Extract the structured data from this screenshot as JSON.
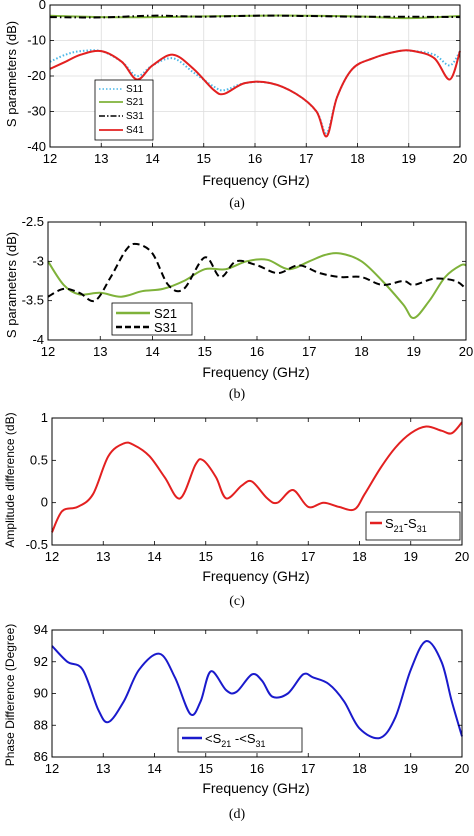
{
  "chart_data": [
    {
      "panel": "(a)",
      "type": "line",
      "xlabel": "Frequency (GHz)",
      "ylabel": "S parameters (dB)",
      "xlim": [
        12,
        20
      ],
      "ylim": [
        -40,
        0
      ],
      "xticks": [
        12,
        13,
        14,
        15,
        16,
        17,
        18,
        19,
        20
      ],
      "yticks": [
        -40,
        -30,
        -20,
        -10,
        0
      ],
      "grid": true,
      "legend_position": "bottom-left",
      "series": [
        {
          "name": "S11",
          "color": "#4bb8e8",
          "style": "dotted",
          "x": [
            12,
            12.3,
            12.6,
            13.0,
            13.4,
            13.7,
            14.0,
            14.4,
            14.8,
            15.2,
            15.4,
            15.8,
            16.3,
            16.8,
            17.2,
            17.4,
            17.6,
            17.9,
            18.3,
            18.8,
            19.1,
            19.5,
            19.8,
            20
          ],
          "y": [
            -16,
            -14,
            -13,
            -13,
            -16,
            -20,
            -17,
            -15,
            -19,
            -23,
            -24,
            -22,
            -22,
            -25,
            -30,
            -36,
            -26,
            -18,
            -15,
            -13,
            -13,
            -14,
            -17,
            -13
          ]
        },
        {
          "name": "S21",
          "color": "#7fb23a",
          "style": "solid",
          "x": [
            12,
            13,
            14,
            15,
            16,
            17,
            18,
            19,
            20
          ],
          "y": [
            -3.0,
            -3.4,
            -3.4,
            -3.2,
            -3.0,
            -3.0,
            -3.2,
            -3.7,
            -3.1
          ]
        },
        {
          "name": "S31",
          "color": "#000000",
          "style": "dashdot",
          "x": [
            12,
            13,
            14,
            15,
            16,
            17,
            18,
            19,
            20
          ],
          "y": [
            -3.4,
            -3.5,
            -3.0,
            -3.3,
            -3.0,
            -3.1,
            -3.3,
            -3.3,
            -3.4
          ]
        },
        {
          "name": "S41",
          "color": "#e32020",
          "style": "solid",
          "x": [
            12,
            12.3,
            12.6,
            13.0,
            13.4,
            13.7,
            14.0,
            14.4,
            14.8,
            15.2,
            15.4,
            15.8,
            16.3,
            16.8,
            17.2,
            17.4,
            17.6,
            17.9,
            18.3,
            18.8,
            19.1,
            19.5,
            19.8,
            20
          ],
          "y": [
            -18,
            -16,
            -14,
            -13,
            -16,
            -21,
            -17,
            -14,
            -18,
            -24,
            -25,
            -22,
            -22,
            -25,
            -30,
            -37,
            -26,
            -18,
            -15,
            -13,
            -13,
            -15,
            -21,
            -13
          ]
        }
      ]
    },
    {
      "panel": "(b)",
      "type": "line",
      "xlabel": "Frequency (GHz)",
      "ylabel": "S parameters (dB)",
      "xlim": [
        12,
        20
      ],
      "ylim": [
        -4,
        -2.5
      ],
      "xticks": [
        12,
        13,
        14,
        15,
        16,
        17,
        18,
        19,
        20
      ],
      "yticks": [
        -4,
        -3.5,
        -3,
        -2.5
      ],
      "grid": false,
      "legend_position": "bottom-left",
      "series": [
        {
          "name": "S21",
          "color": "#7fb23a",
          "style": "solid",
          "x": [
            12,
            12.3,
            12.6,
            13.0,
            13.4,
            13.8,
            14.2,
            14.6,
            15.0,
            15.4,
            15.8,
            16.2,
            16.6,
            17.0,
            17.3,
            17.6,
            18.0,
            18.4,
            18.8,
            19.0,
            19.3,
            19.6,
            19.9,
            20
          ],
          "y": [
            -3.0,
            -3.3,
            -3.42,
            -3.4,
            -3.45,
            -3.38,
            -3.35,
            -3.25,
            -3.1,
            -3.1,
            -3.0,
            -2.98,
            -3.1,
            -3.0,
            -2.92,
            -2.9,
            -3.0,
            -3.25,
            -3.55,
            -3.72,
            -3.5,
            -3.2,
            -3.05,
            -3.05
          ]
        },
        {
          "name": "S31",
          "color": "#000000",
          "style": "dashed",
          "x": [
            12,
            12.3,
            12.6,
            12.9,
            13.2,
            13.5,
            13.7,
            14.0,
            14.3,
            14.6,
            15.0,
            15.3,
            15.6,
            16.0,
            16.4,
            16.8,
            17.2,
            17.6,
            18.0,
            18.4,
            18.8,
            19.0,
            19.4,
            19.8,
            20
          ],
          "y": [
            -3.45,
            -3.35,
            -3.4,
            -3.5,
            -3.2,
            -2.85,
            -2.78,
            -2.9,
            -3.3,
            -3.35,
            -2.95,
            -3.2,
            -3.0,
            -3.05,
            -3.15,
            -3.05,
            -3.15,
            -3.2,
            -3.2,
            -3.3,
            -3.25,
            -3.3,
            -3.22,
            -3.25,
            -3.35
          ]
        }
      ]
    },
    {
      "panel": "(c)",
      "type": "line",
      "xlabel": "Frequency (GHz)",
      "ylabel": "Amplitude difference (dB)",
      "xlim": [
        12,
        20
      ],
      "ylim": [
        -0.5,
        1
      ],
      "xticks": [
        12,
        13,
        14,
        15,
        16,
        17,
        18,
        19,
        20
      ],
      "yticks": [
        -0.5,
        0,
        0.5,
        1
      ],
      "grid": false,
      "legend_position": "bottom-right",
      "series": [
        {
          "name": "S21-S31",
          "color": "#e32020",
          "style": "solid",
          "x": [
            12,
            12.2,
            12.5,
            12.8,
            13.1,
            13.4,
            13.6,
            13.9,
            14.2,
            14.5,
            14.8,
            14.95,
            15.2,
            15.4,
            15.7,
            15.9,
            16.2,
            16.4,
            16.7,
            17.0,
            17.3,
            17.6,
            17.9,
            18.1,
            18.4,
            18.7,
            19.0,
            19.3,
            19.6,
            19.8,
            20
          ],
          "y": [
            -0.35,
            -0.1,
            -0.05,
            0.1,
            0.55,
            0.7,
            0.68,
            0.55,
            0.3,
            0.05,
            0.45,
            0.5,
            0.3,
            0.05,
            0.2,
            0.25,
            0.05,
            0.0,
            0.15,
            -0.05,
            0.0,
            -0.05,
            -0.08,
            0.1,
            0.4,
            0.65,
            0.82,
            0.9,
            0.85,
            0.82,
            0.95
          ]
        }
      ]
    },
    {
      "panel": "(d)",
      "type": "line",
      "xlabel": "Frequency (GHz)",
      "ylabel": "Phase Difference (Degree)",
      "xlim": [
        12,
        20
      ],
      "ylim": [
        86,
        94
      ],
      "xticks": [
        12,
        13,
        14,
        15,
        16,
        17,
        18,
        19,
        20
      ],
      "yticks": [
        86,
        88,
        90,
        92,
        94
      ],
      "grid": false,
      "legend_position": "bottom-left",
      "series": [
        {
          "name": "<S21 -<S31",
          "color": "#1a1acc",
          "style": "solid",
          "x": [
            12,
            12.3,
            12.6,
            12.9,
            13.1,
            13.4,
            13.7,
            14.1,
            14.4,
            14.7,
            14.9,
            15.1,
            15.4,
            15.6,
            15.9,
            16.1,
            16.3,
            16.6,
            16.9,
            17.1,
            17.4,
            17.7,
            18.0,
            18.4,
            18.7,
            19.0,
            19.3,
            19.6,
            19.8,
            20
          ],
          "y": [
            93.0,
            92.0,
            91.5,
            89.0,
            88.2,
            89.5,
            91.5,
            92.5,
            91.0,
            88.7,
            89.5,
            91.4,
            90.2,
            90.1,
            91.2,
            90.8,
            89.8,
            90.0,
            91.2,
            91.0,
            90.6,
            89.5,
            87.8,
            87.2,
            88.5,
            91.5,
            93.3,
            92.0,
            89.5,
            87.3
          ]
        }
      ]
    }
  ],
  "labels": {
    "a": {
      "caption": "(a)",
      "xlabel": "Frequency (GHz)",
      "ylabel": "S parameters (dB)",
      "legend": [
        "S11",
        "S21",
        "S31",
        "S41"
      ]
    },
    "b": {
      "caption": "(b)",
      "xlabel": "Frequency (GHz)",
      "ylabel": "S parameters (dB)",
      "legend": [
        "S21",
        "S31"
      ]
    },
    "c": {
      "caption": "(c)",
      "xlabel": "Frequency (GHz)",
      "ylabel": "Amplitude difference (dB)",
      "legend_main": "S",
      "legend_sub1": "21",
      "legend_mid": "-S",
      "legend_sub2": "31"
    },
    "d": {
      "caption": "(d)",
      "xlabel": "Frequency (GHz)",
      "ylabel": "Phase Difference (Degree)",
      "legend_main": "<S",
      "legend_sub1": "21",
      "legend_mid": " -<S",
      "legend_sub2": "31"
    }
  }
}
